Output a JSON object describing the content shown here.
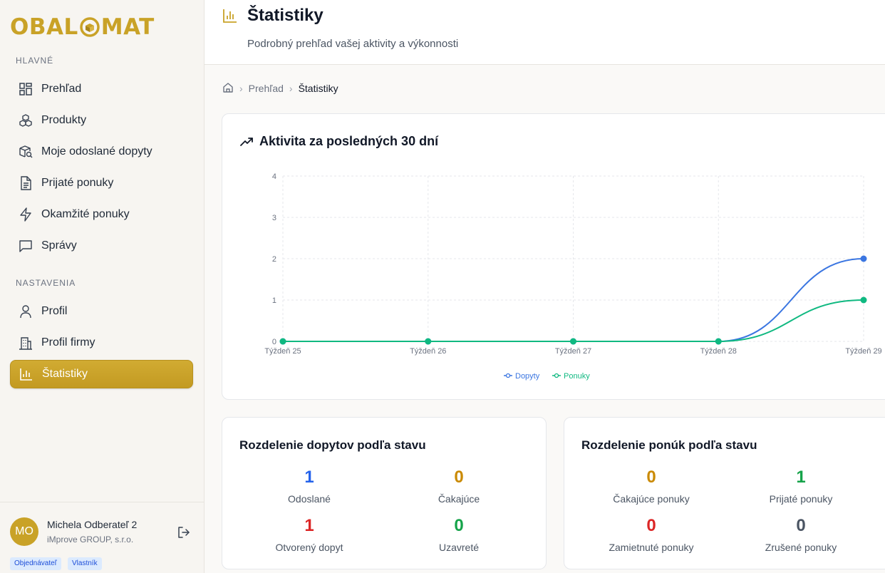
{
  "brand": {
    "logo_left": "OBAL",
    "logo_right": "MAT"
  },
  "sidebar": {
    "section_main": "HLAVNÉ",
    "section_settings": "NASTAVENIA",
    "items": [
      {
        "label": "Prehľad",
        "icon": "dashboard-grid-icon"
      },
      {
        "label": "Produkty",
        "icon": "boxes-icon"
      },
      {
        "label": "Moje odoslané dopyty",
        "icon": "package-search-icon"
      },
      {
        "label": "Prijaté ponuky",
        "icon": "document-icon"
      },
      {
        "label": "Okamžité ponuky",
        "icon": "lightning-icon"
      },
      {
        "label": "Správy",
        "icon": "message-icon"
      }
    ],
    "settings_items": [
      {
        "label": "Profil",
        "icon": "user-icon"
      },
      {
        "label": "Profil firmy",
        "icon": "building-icon"
      },
      {
        "label": "Štatistiky",
        "icon": "bar-chart-icon",
        "active": true
      }
    ]
  },
  "user": {
    "initials": "MO",
    "name": "Michela Odberateľ 2",
    "company": "iMprove GROUP, s.r.o.",
    "badges": [
      "Objednávateľ",
      "Vlastník"
    ]
  },
  "header": {
    "title": "Štatistiky",
    "subtitle": "Podrobný prehľad vašej aktivity a výkonnosti"
  },
  "breadcrumb": {
    "parent": "Prehľad",
    "current": "Štatistiky"
  },
  "activity_card": {
    "title": "Aktivita za posledných 30 dní"
  },
  "chart_data": {
    "type": "line",
    "title": "Aktivita za posledných 30 dní",
    "categories": [
      "Týždeň 25",
      "Týždeň 26",
      "Týždeň 27",
      "Týždeň 28",
      "Týždeň 29"
    ],
    "ylim": [
      0,
      4
    ],
    "yticks": [
      0,
      1,
      2,
      3,
      4
    ],
    "grid": true,
    "legend_position": "bottom-center",
    "series": [
      {
        "name": "Dopyty",
        "color": "#3b76e1",
        "values": [
          0,
          0,
          0,
          0,
          2
        ]
      },
      {
        "name": "Ponuky",
        "color": "#10b981",
        "values": [
          0,
          0,
          0,
          0,
          1
        ]
      }
    ]
  },
  "inquiries_card": {
    "title": "Rozdelenie dopytov podľa stavu",
    "stats": [
      {
        "value": "1",
        "label": "Odoslané",
        "color": "#2563eb"
      },
      {
        "value": "0",
        "label": "Čakajúce",
        "color": "#ca8a04"
      },
      {
        "value": "1",
        "label": "Otvorený dopyt",
        "color": "#dc2626"
      },
      {
        "value": "0",
        "label": "Uzavreté",
        "color": "#16a34a"
      }
    ]
  },
  "offers_card": {
    "title": "Rozdelenie ponúk podľa stavu",
    "stats": [
      {
        "value": "0",
        "label": "Čakajúce ponuky",
        "color": "#ca8a04"
      },
      {
        "value": "1",
        "label": "Prijaté ponuky",
        "color": "#16a34a"
      },
      {
        "value": "0",
        "label": "Zamietnuté ponuky",
        "color": "#dc2626"
      },
      {
        "value": "0",
        "label": "Zrušené ponuky",
        "color": "#4b5563"
      }
    ]
  }
}
